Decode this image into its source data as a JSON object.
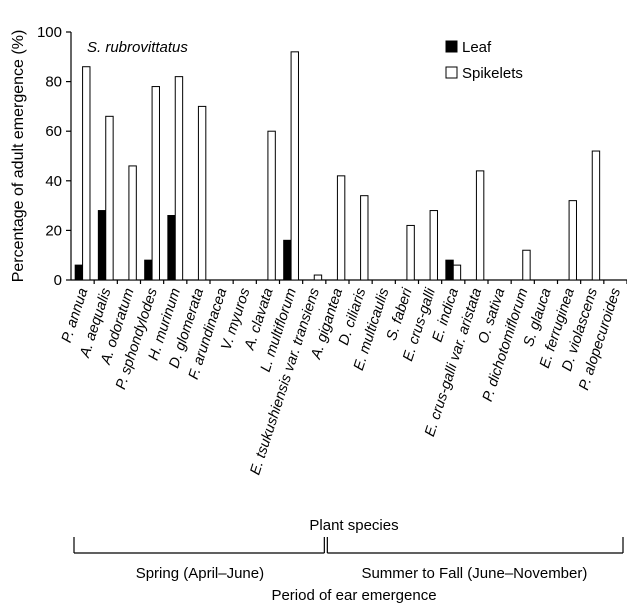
{
  "chart_data": {
    "type": "bar",
    "title": "S. rubrovittatus",
    "ylabel": "Percentage of adult emergence (%)",
    "xlabel": "Plant species",
    "ylim": [
      0,
      100
    ],
    "yticks": [
      0,
      20,
      40,
      60,
      80,
      100
    ],
    "legend_position": "top-right",
    "categories": [
      "P. annua",
      "A. aequalis",
      "A. odoratum",
      "P. sphondylodes",
      "H. murinum",
      "D. glomerata",
      "F. arundinacea",
      "V. myuros",
      "A. clavata",
      "L. multiflorum",
      "E. tsukushiensis var. transiens",
      "A. gigantea",
      "D. ciliaris",
      "E. multicaulis",
      "S. faberi",
      "E. crus-galli",
      "E. indica",
      "E. crus-galli var. aristata",
      "O. sativa",
      "P. dichotomiflorum",
      "S. glauca",
      "E. ferruginea",
      "D. violascens",
      "P. alopecuroides"
    ],
    "series": [
      {
        "name": "Leaf",
        "color": "#000000",
        "values": [
          6,
          28,
          0,
          8,
          26,
          0,
          0,
          0,
          0,
          16,
          0,
          0,
          0,
          0,
          0,
          0,
          8,
          0,
          0,
          0,
          0,
          0,
          0,
          0
        ]
      },
      {
        "name": "Spikelets",
        "color": "#ffffff",
        "values": [
          86,
          66,
          46,
          78,
          82,
          70,
          0,
          0,
          60,
          92,
          2,
          42,
          34,
          0,
          22,
          28,
          6,
          44,
          0,
          12,
          0,
          32,
          52,
          0
        ]
      }
    ],
    "period": {
      "axis_label": "Period of ear emergence",
      "groups": [
        {
          "label": "Spring (April–June)",
          "start_category": 0,
          "end_category": 10
        },
        {
          "label": "Summer to Fall (June–November)",
          "start_category": 11,
          "end_category": 23
        }
      ]
    }
  }
}
